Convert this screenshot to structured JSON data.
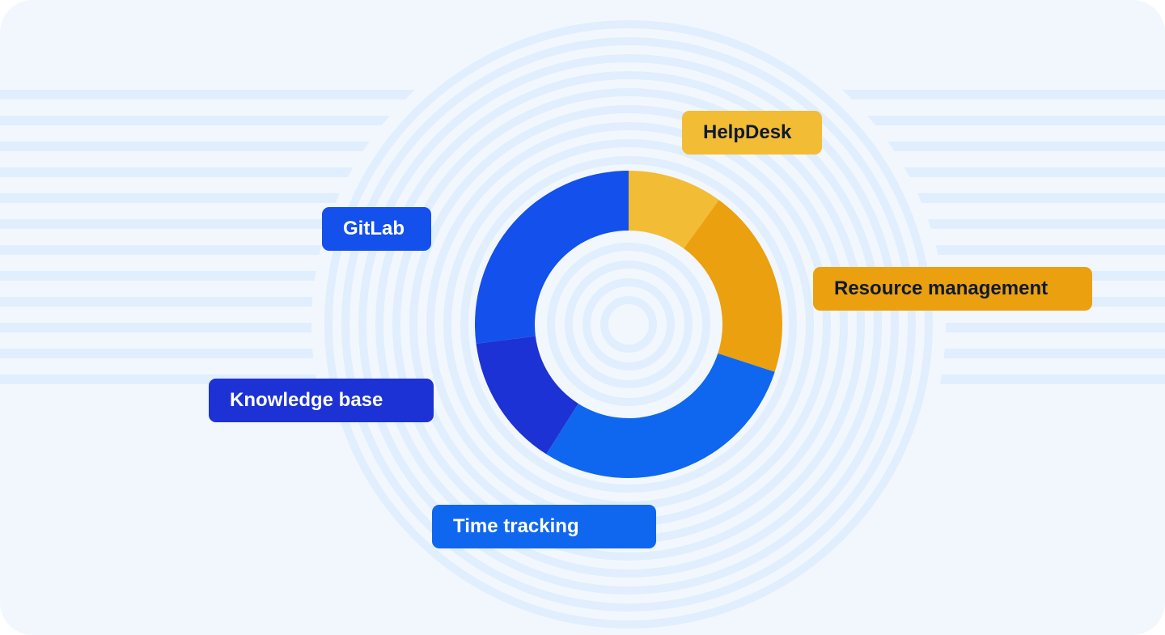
{
  "chart_data": {
    "type": "pie",
    "variant": "donut",
    "legend": "none",
    "categories": [
      "HelpDesk",
      "Resource management",
      "Time tracking",
      "Knowledge base",
      "GitLab"
    ],
    "values": [
      10,
      20,
      29,
      14,
      27
    ],
    "colors": [
      "#F2BC35",
      "#EBA00F",
      "#0F67EF",
      "#1C32D4",
      "#1350EC"
    ],
    "label_text_colors": [
      "#0E1A33",
      "#0E1A33",
      "#FFFFFF",
      "#FFFFFF",
      "#FFFFFF"
    ]
  },
  "colors": {
    "background": "#F2F7FE",
    "decor": "#E0EEFD"
  }
}
